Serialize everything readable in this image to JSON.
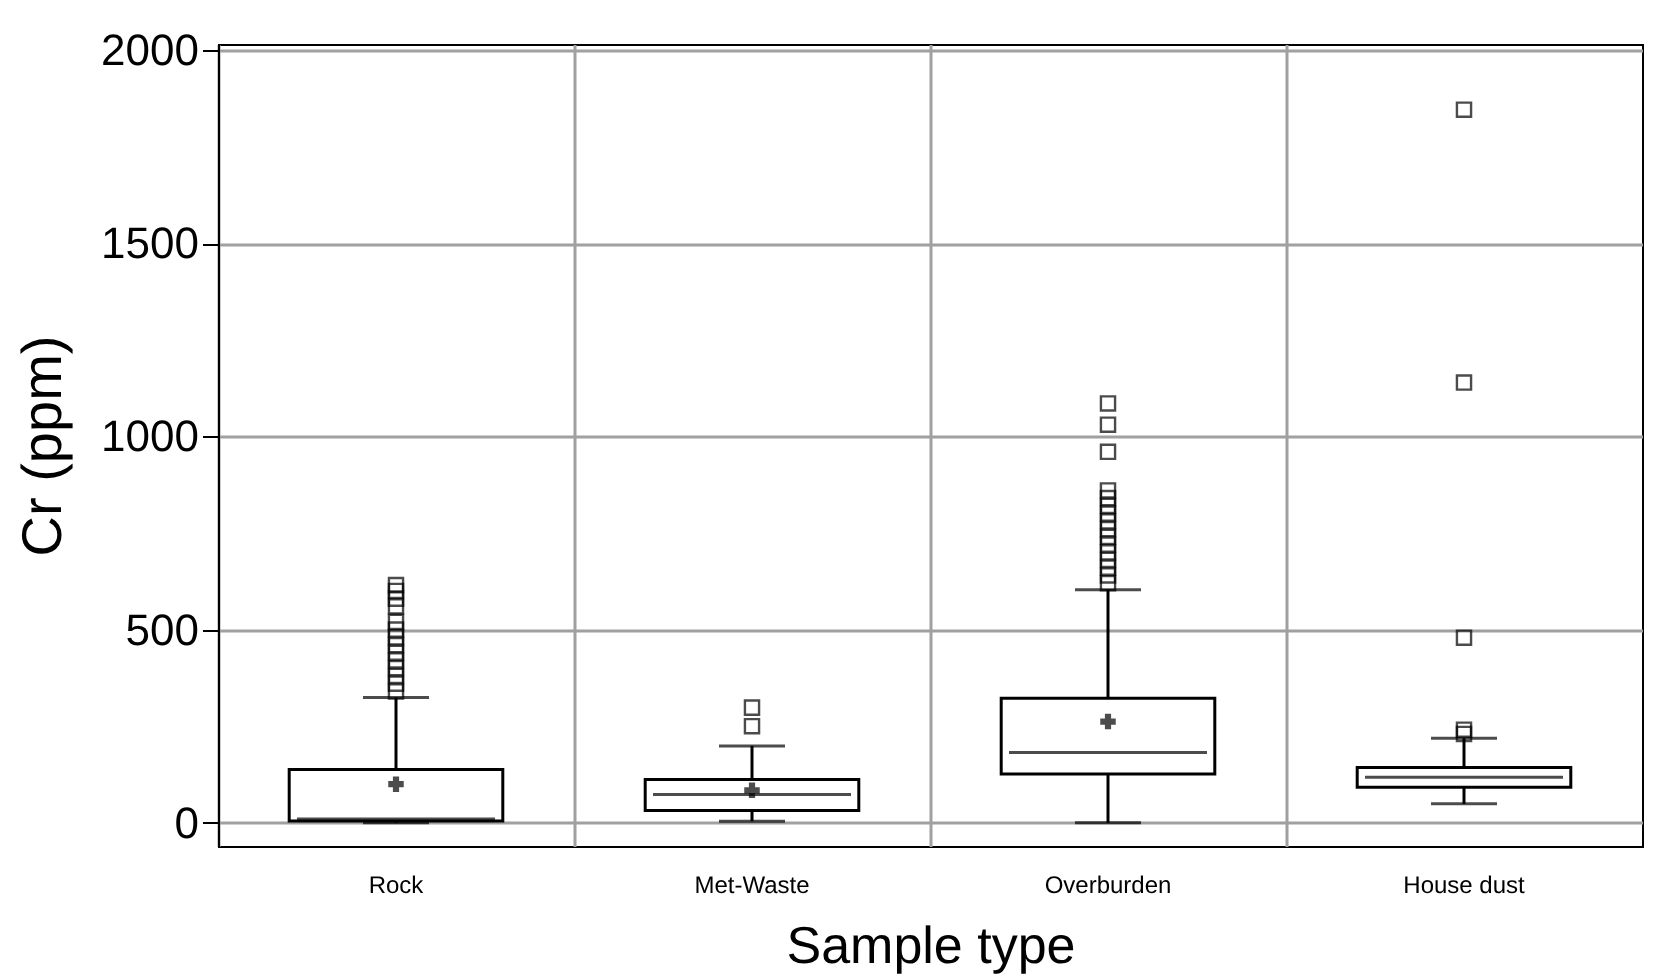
{
  "chart_data": {
    "type": "box",
    "xlabel": "Sample type",
    "ylabel": "Cr (ppm)",
    "categories": [
      "Rock",
      "Met-Waste",
      "Overburden",
      "House dust"
    ],
    "boxes": [
      {
        "low": 0,
        "q1": 5,
        "median": 10,
        "q3": 138,
        "high": 324,
        "mean": 100,
        "outliers": [
          340,
          360,
          380,
          400,
          420,
          440,
          460,
          480,
          500,
          520,
          560,
          580,
          600,
          615
        ]
      },
      {
        "low": 4,
        "q1": 32,
        "median": 73,
        "q3": 112,
        "high": 199,
        "mean": 84,
        "outliers": [
          250,
          298
        ]
      },
      {
        "low": 0,
        "q1": 126,
        "median": 182,
        "q3": 322,
        "high": 603,
        "mean": 262,
        "outliers": [
          620,
          640,
          660,
          680,
          700,
          720,
          740,
          760,
          780,
          800,
          820,
          840,
          860,
          960,
          1030,
          1085
        ]
      },
      {
        "low": 49,
        "q1": 92,
        "median": 118,
        "q3": 143,
        "high": 219,
        "outliers": [
          230,
          241,
          479,
          1139,
          1845
        ]
      }
    ],
    "ylim": [
      -60,
      2015
    ],
    "yticks": [
      0,
      500,
      1000,
      1500,
      2000
    ],
    "grid": true,
    "color": "#000000"
  }
}
